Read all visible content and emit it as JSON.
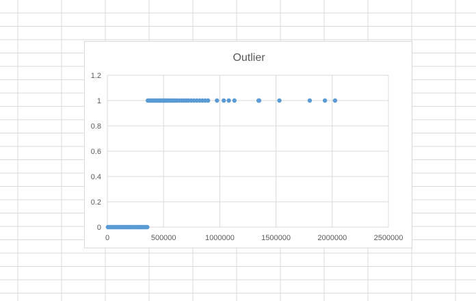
{
  "sheet": {
    "grid_color": "#d9d9d9"
  },
  "chart_data": {
    "type": "scatter",
    "title": "Outlier",
    "xlabel": "",
    "ylabel": "",
    "xlim": [
      0,
      2500000
    ],
    "ylim": [
      0,
      1.2
    ],
    "x_ticks": [
      0,
      500000,
      1000000,
      1500000,
      2000000,
      2500000
    ],
    "y_ticks": [
      0,
      0.2,
      0.4,
      0.6,
      0.8,
      1,
      1.2
    ],
    "grid": true,
    "legend": "none",
    "marker_color": "#5b9bd5",
    "gridline_color": "#d9d9d9",
    "series": [
      {
        "values_description_hidden": false,
        "points": [
          [
            5000,
            0
          ],
          [
            15000,
            0
          ],
          [
            25000,
            0
          ],
          [
            35000,
            0
          ],
          [
            45000,
            0
          ],
          [
            55000,
            0
          ],
          [
            65000,
            0
          ],
          [
            75000,
            0
          ],
          [
            85000,
            0
          ],
          [
            95000,
            0
          ],
          [
            105000,
            0
          ],
          [
            115000,
            0
          ],
          [
            125000,
            0
          ],
          [
            135000,
            0
          ],
          [
            145000,
            0
          ],
          [
            155000,
            0
          ],
          [
            165000,
            0
          ],
          [
            175000,
            0
          ],
          [
            185000,
            0
          ],
          [
            195000,
            0
          ],
          [
            205000,
            0
          ],
          [
            215000,
            0
          ],
          [
            225000,
            0
          ],
          [
            235000,
            0
          ],
          [
            245000,
            0
          ],
          [
            255000,
            0
          ],
          [
            265000,
            0
          ],
          [
            275000,
            0
          ],
          [
            285000,
            0
          ],
          [
            295000,
            0
          ],
          [
            305000,
            0
          ],
          [
            315000,
            0
          ],
          [
            325000,
            0
          ],
          [
            335000,
            0
          ],
          [
            345000,
            0
          ],
          [
            355000,
            0
          ],
          [
            360000,
            1
          ],
          [
            370000,
            1
          ],
          [
            380000,
            1
          ],
          [
            390000,
            1
          ],
          [
            400000,
            1
          ],
          [
            410000,
            1
          ],
          [
            420000,
            1
          ],
          [
            430000,
            1
          ],
          [
            440000,
            1
          ],
          [
            450000,
            1
          ],
          [
            460000,
            1
          ],
          [
            470000,
            1
          ],
          [
            480000,
            1
          ],
          [
            490000,
            1
          ],
          [
            500000,
            1
          ],
          [
            510000,
            1
          ],
          [
            520000,
            1
          ],
          [
            530000,
            1
          ],
          [
            545000,
            1
          ],
          [
            560000,
            1
          ],
          [
            575000,
            1
          ],
          [
            590000,
            1
          ],
          [
            605000,
            1
          ],
          [
            620000,
            1
          ],
          [
            640000,
            1
          ],
          [
            660000,
            1
          ],
          [
            680000,
            1
          ],
          [
            700000,
            1
          ],
          [
            720000,
            1
          ],
          [
            745000,
            1
          ],
          [
            770000,
            1
          ],
          [
            795000,
            1
          ],
          [
            820000,
            1
          ],
          [
            845000,
            1
          ],
          [
            870000,
            1
          ],
          [
            895000,
            1
          ],
          [
            975000,
            1
          ],
          [
            1035000,
            1
          ],
          [
            1080000,
            1
          ],
          [
            1130000,
            1
          ],
          [
            1345000,
            1
          ],
          [
            1350000,
            1
          ],
          [
            1530000,
            1
          ],
          [
            1800000,
            1
          ],
          [
            1935000,
            1
          ],
          [
            2025000,
            1
          ]
        ]
      }
    ]
  }
}
